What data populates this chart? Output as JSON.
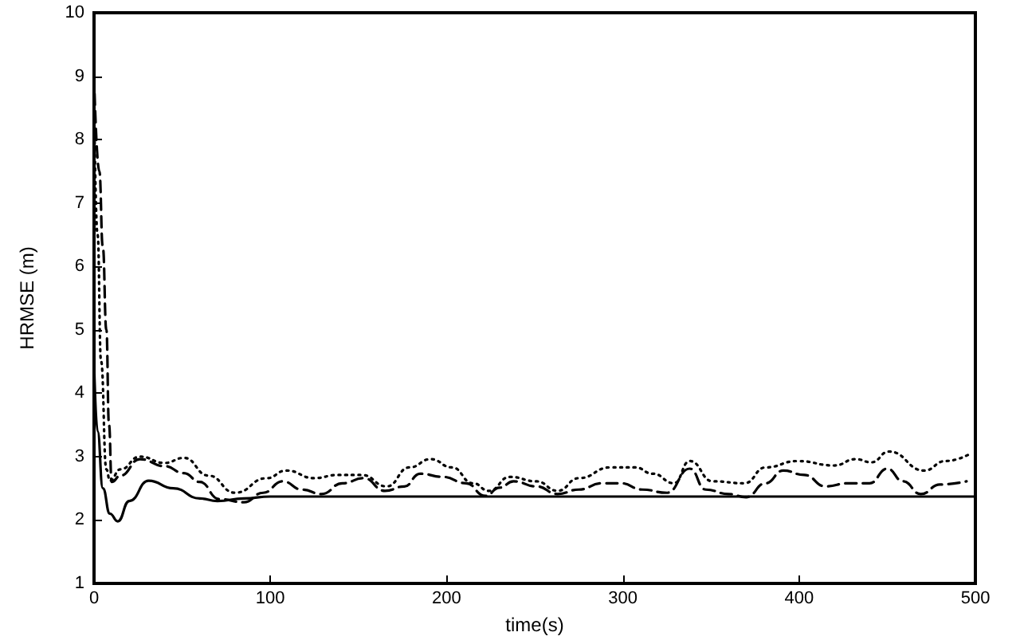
{
  "chart_data": {
    "type": "line",
    "xlabel": "time(s)",
    "ylabel": "HRMSE (m)",
    "xlim": [
      0,
      500
    ],
    "xticks": [
      0,
      100,
      200,
      300,
      400,
      500
    ],
    "ylim": [
      1,
      10
    ],
    "yticks": [
      1,
      2,
      3,
      4,
      5,
      6,
      7,
      8,
      9,
      10
    ],
    "grid": false,
    "marker": "none",
    "series": [
      {
        "color": "#000000",
        "line_style": "solid",
        "x": [
          0,
          2,
          5,
          9,
          13.5,
          20,
          31,
          45,
          60,
          70,
          85,
          100,
          500
        ],
        "values": [
          4.5,
          3.4,
          2.5,
          2.1,
          1.98,
          2.3,
          2.62,
          2.5,
          2.34,
          2.3,
          2.34,
          2.37,
          2.37
        ]
      },
      {
        "color": "#000000",
        "line_style": "dashed",
        "x": [
          0,
          3,
          5,
          7,
          8.5,
          10,
          15,
          26,
          40,
          51,
          60,
          71,
          85,
          96,
          107,
          118,
          129,
          141,
          153,
          165,
          176,
          185,
          198,
          211,
          222,
          230,
          238,
          251,
          263,
          275,
          288,
          299,
          311,
          325,
          338,
          347,
          360,
          370,
          381,
          391,
          403,
          415,
          428,
          440,
          450,
          459,
          469,
          480,
          495
        ],
        "values": [
          9.0,
          7.5,
          6.3,
          5.0,
          3.5,
          2.6,
          2.7,
          2.96,
          2.85,
          2.74,
          2.6,
          2.33,
          2.28,
          2.43,
          2.61,
          2.48,
          2.41,
          2.58,
          2.66,
          2.46,
          2.53,
          2.73,
          2.68,
          2.58,
          2.38,
          2.51,
          2.61,
          2.53,
          2.41,
          2.48,
          2.58,
          2.58,
          2.48,
          2.43,
          2.81,
          2.48,
          2.41,
          2.36,
          2.58,
          2.78,
          2.71,
          2.53,
          2.58,
          2.58,
          2.81,
          2.61,
          2.41,
          2.56,
          2.61
        ]
      },
      {
        "color": "#000000",
        "line_style": "dotted",
        "x": [
          0,
          2,
          4,
          7,
          9,
          15,
          26,
          40,
          51,
          65,
          80,
          98,
          109,
          125,
          138,
          152,
          166,
          179,
          191,
          203,
          215,
          224,
          236,
          251,
          263,
          275,
          293,
          307,
          317,
          329,
          338,
          351,
          369,
          381,
          399,
          420,
          432,
          441,
          451,
          471,
          483,
          498
        ],
        "values": [
          8.6,
          6.5,
          4.5,
          2.8,
          2.62,
          2.8,
          3.0,
          2.9,
          2.98,
          2.7,
          2.43,
          2.66,
          2.78,
          2.66,
          2.71,
          2.71,
          2.53,
          2.83,
          2.96,
          2.83,
          2.58,
          2.46,
          2.68,
          2.61,
          2.46,
          2.66,
          2.83,
          2.83,
          2.73,
          2.58,
          2.93,
          2.61,
          2.58,
          2.83,
          2.93,
          2.86,
          2.96,
          2.91,
          3.08,
          2.78,
          2.93,
          3.06
        ]
      }
    ]
  }
}
